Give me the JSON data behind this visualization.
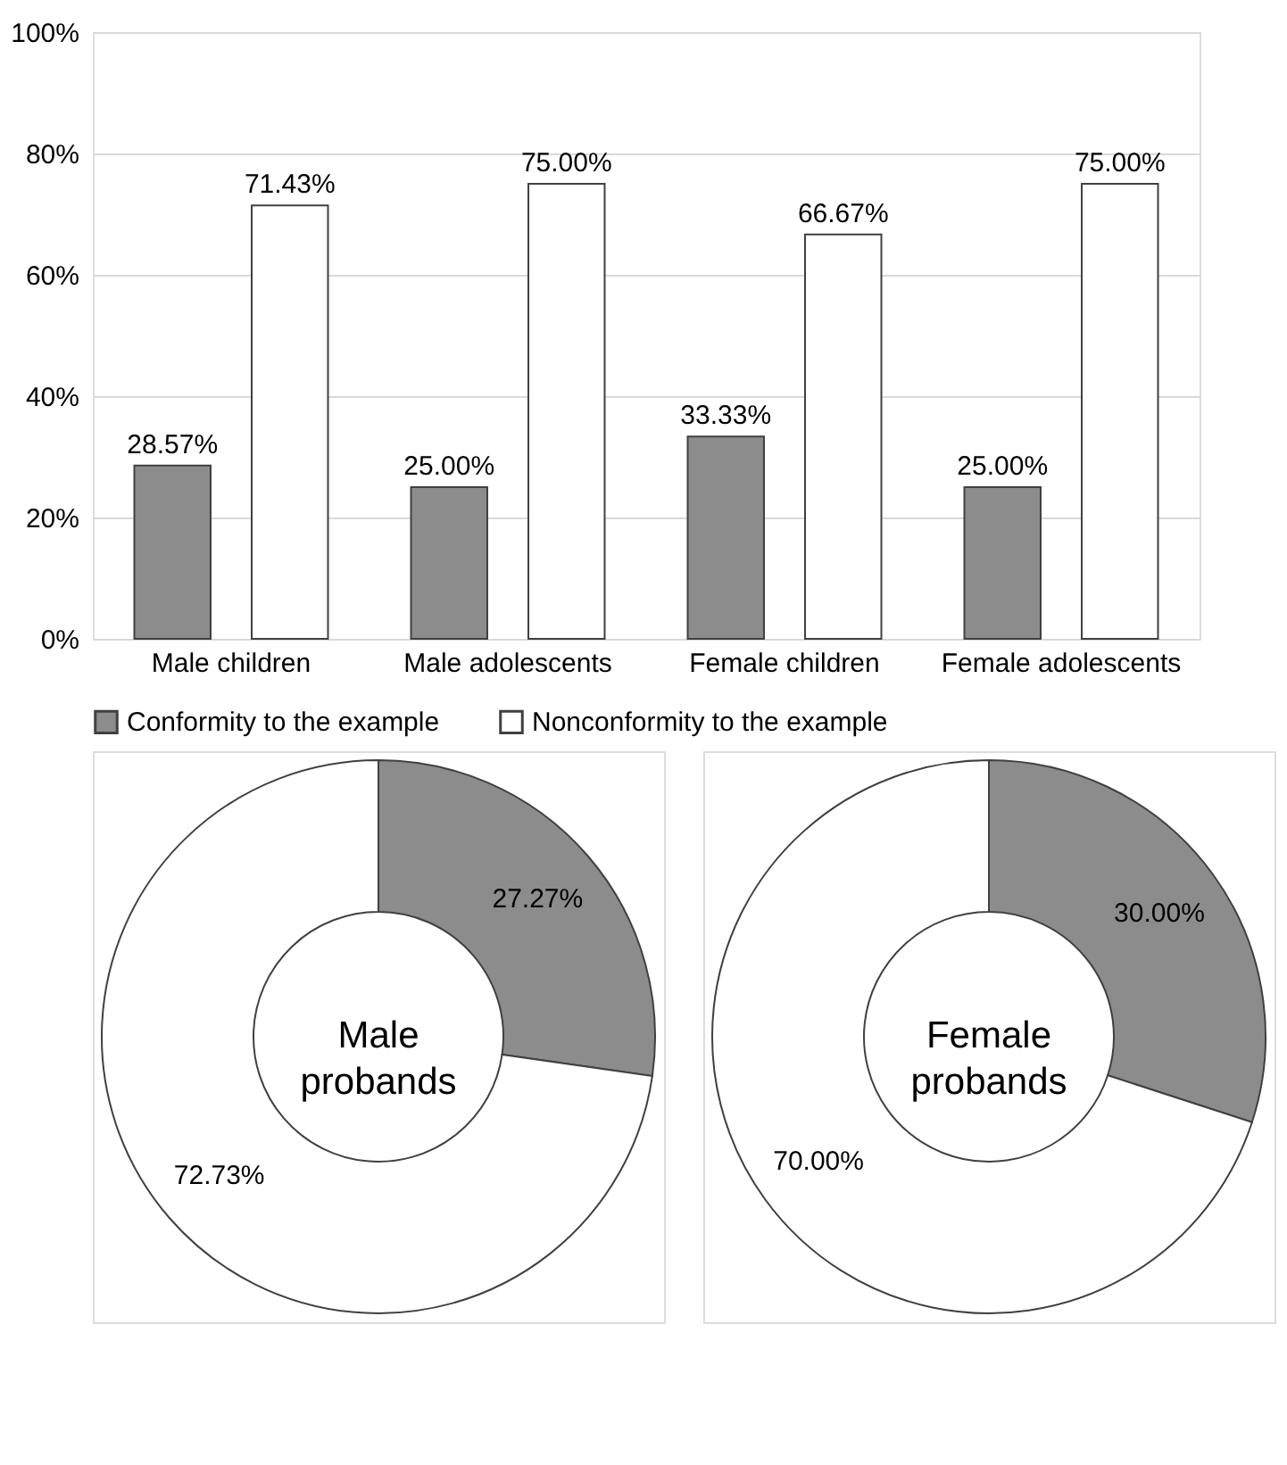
{
  "chart_data": [
    {
      "type": "bar",
      "categories": [
        "Male children",
        "Male adolescents",
        "Female children",
        "Female adolescents"
      ],
      "series": [
        {
          "name": "Conformity to the example",
          "color": "#8c8c8c",
          "values": [
            28.57,
            25.0,
            33.33,
            25.0
          ],
          "value_labels": [
            "28.57%",
            "25.00%",
            "33.33%",
            "25.00%"
          ]
        },
        {
          "name": "Nonconformity to the example",
          "color": "#ffffff",
          "values": [
            71.43,
            75.0,
            66.67,
            75.0
          ],
          "value_labels": [
            "71.43%",
            "75.00%",
            "66.67%",
            "75.00%"
          ]
        }
      ],
      "ylim": [
        0,
        100
      ],
      "yticks": [
        {
          "value": 0,
          "label": "0%"
        },
        {
          "value": 20,
          "label": "20%"
        },
        {
          "value": 40,
          "label": "40%"
        },
        {
          "value": 60,
          "label": "60%"
        },
        {
          "value": 80,
          "label": "80%"
        },
        {
          "value": 100,
          "label": "100%"
        }
      ],
      "grid": "y",
      "legend": "bottom"
    },
    {
      "type": "donut",
      "title": "Male probands",
      "categories": [
        null,
        null
      ],
      "values": [
        27.27,
        72.73
      ],
      "colors": [
        "#8c8c8c",
        "#ffffff"
      ],
      "value_labels": [
        "27.27%",
        "72.73%"
      ]
    },
    {
      "type": "donut",
      "title": "Female probands",
      "categories": [
        null,
        null
      ],
      "values": [
        30.0,
        70.0
      ],
      "colors": [
        "#8c8c8c",
        "#ffffff"
      ],
      "value_labels": [
        "30.00%",
        "70.00%"
      ]
    }
  ]
}
